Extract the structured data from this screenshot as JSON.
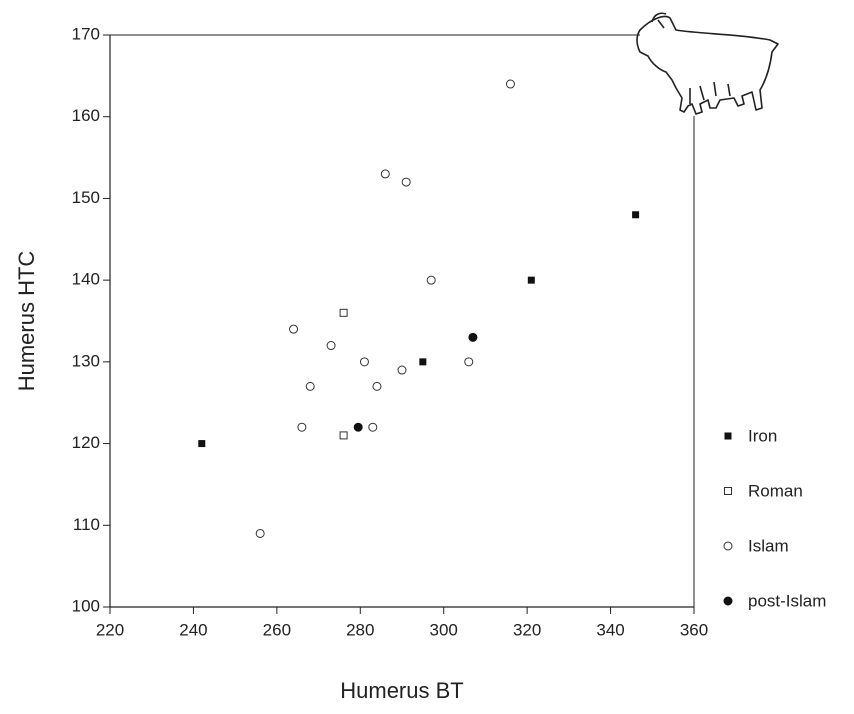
{
  "chart_data": {
    "type": "scatter",
    "xlabel": "Humerus BT",
    "ylabel": "Humerus HTC",
    "xlim": [
      220,
      360
    ],
    "xticks": [
      220,
      240,
      260,
      280,
      300,
      320,
      340,
      360
    ],
    "ylim": [
      100,
      170
    ],
    "yticks": [
      100,
      110,
      120,
      130,
      140,
      150,
      160,
      170
    ],
    "series": [
      {
        "name": "Iron",
        "marker": "filled-square",
        "color": "#111111",
        "x": [
          242,
          295,
          321,
          346
        ],
        "values": [
          120,
          130,
          140,
          148
        ]
      },
      {
        "name": "Roman",
        "marker": "open-square",
        "color": "#333333",
        "x": [
          276,
          276
        ],
        "values": [
          136,
          121
        ]
      },
      {
        "name": "Islam",
        "marker": "open-circle",
        "color": "#333333",
        "x": [
          316,
          286,
          291,
          297,
          264,
          273,
          281,
          290,
          306,
          268,
          284,
          266,
          283,
          256
        ],
        "values": [
          164,
          153,
          152,
          140,
          134,
          132,
          130,
          129,
          130,
          127,
          127,
          122,
          122,
          109
        ]
      },
      {
        "name": "post-Islam",
        "marker": "filled-circle",
        "color": "#111111",
        "x": [
          279.5,
          307
        ],
        "values": [
          122,
          133
        ]
      }
    ]
  }
}
